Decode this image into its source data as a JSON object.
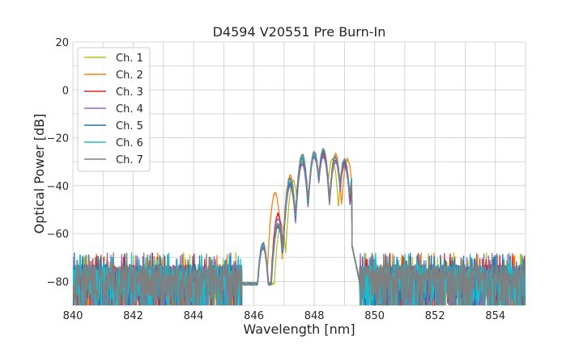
{
  "chart_data": {
    "type": "line",
    "title": "D4594 V20551 Pre Burn-In",
    "xlabel": "Wavelength [nm]",
    "ylabel": "Optical Power [dB]",
    "xlim": [
      840,
      855
    ],
    "ylim": [
      -90,
      20
    ],
    "xticks": [
      840,
      842,
      844,
      846,
      848,
      850,
      852,
      854
    ],
    "yticks": [
      -80,
      -60,
      -40,
      -20,
      0,
      20
    ],
    "xtick_labels": [
      "840",
      "842",
      "844",
      "846",
      "848",
      "850",
      "852",
      "854"
    ],
    "ytick_labels": [
      "−80",
      "−60",
      "−40",
      "−20",
      "0",
      "20"
    ],
    "grid": true,
    "legend_position": "top-left",
    "noise_floor_db": -73,
    "signal_band_nm": [
      845.6,
      849.5
    ],
    "series": [
      {
        "name": "Ch. 1",
        "color": "#bcbd22",
        "peaks": [
          [
            846.3,
            -65
          ],
          [
            846.9,
            -56
          ],
          [
            847.3,
            -38
          ],
          [
            847.6,
            -30
          ],
          [
            848.0,
            -27
          ],
          [
            848.3,
            -26
          ],
          [
            848.6,
            -29
          ],
          [
            849.0,
            -30
          ],
          [
            849.3,
            -38
          ]
        ]
      },
      {
        "name": "Ch. 2",
        "color": "#ff7f0e",
        "peaks": [
          [
            846.3,
            -65
          ],
          [
            846.7,
            -43
          ],
          [
            847.2,
            -36
          ],
          [
            847.6,
            -29
          ],
          [
            848.0,
            -26
          ],
          [
            848.3,
            -25
          ],
          [
            848.7,
            -27
          ],
          [
            849.1,
            -29
          ],
          [
            849.4,
            -32
          ]
        ]
      },
      {
        "name": "Ch. 3",
        "color": "#d62728",
        "peaks": [
          [
            846.3,
            -66
          ],
          [
            846.8,
            -52
          ],
          [
            847.2,
            -40
          ],
          [
            847.6,
            -31
          ],
          [
            848.0,
            -28
          ],
          [
            848.3,
            -27
          ],
          [
            848.7,
            -29
          ],
          [
            849.0,
            -31
          ],
          [
            849.3,
            -40
          ]
        ]
      },
      {
        "name": "Ch. 4",
        "color": "#9467bd",
        "peaks": [
          [
            846.3,
            -66
          ],
          [
            846.8,
            -54
          ],
          [
            847.2,
            -40
          ],
          [
            847.6,
            -31
          ],
          [
            848.0,
            -28
          ],
          [
            848.3,
            -28
          ],
          [
            848.7,
            -30
          ],
          [
            849.0,
            -32
          ],
          [
            849.3,
            -42
          ]
        ]
      },
      {
        "name": "Ch. 5",
        "color": "#1f77b4",
        "peaks": [
          [
            846.3,
            -65
          ],
          [
            846.8,
            -57
          ],
          [
            847.2,
            -39
          ],
          [
            847.6,
            -29
          ],
          [
            848.0,
            -27
          ],
          [
            848.3,
            -26
          ],
          [
            848.7,
            -28
          ],
          [
            849.0,
            -30
          ],
          [
            849.3,
            -36
          ]
        ]
      },
      {
        "name": "Ch. 6",
        "color": "#17becf",
        "peaks": [
          [
            846.3,
            -65
          ],
          [
            846.8,
            -56
          ],
          [
            847.2,
            -38
          ],
          [
            847.6,
            -28
          ],
          [
            848.0,
            -27
          ],
          [
            848.3,
            -25
          ],
          [
            848.7,
            -28
          ],
          [
            849.0,
            -29
          ],
          [
            849.3,
            -35
          ]
        ]
      },
      {
        "name": "Ch. 7",
        "color": "#7f7f7f",
        "peaks": [
          [
            846.3,
            -64
          ],
          [
            846.8,
            -56
          ],
          [
            847.2,
            -37
          ],
          [
            847.6,
            -27
          ],
          [
            848.0,
            -26
          ],
          [
            848.3,
            -25
          ],
          [
            848.7,
            -28
          ],
          [
            849.0,
            -29
          ],
          [
            849.3,
            -36
          ]
        ]
      }
    ]
  }
}
